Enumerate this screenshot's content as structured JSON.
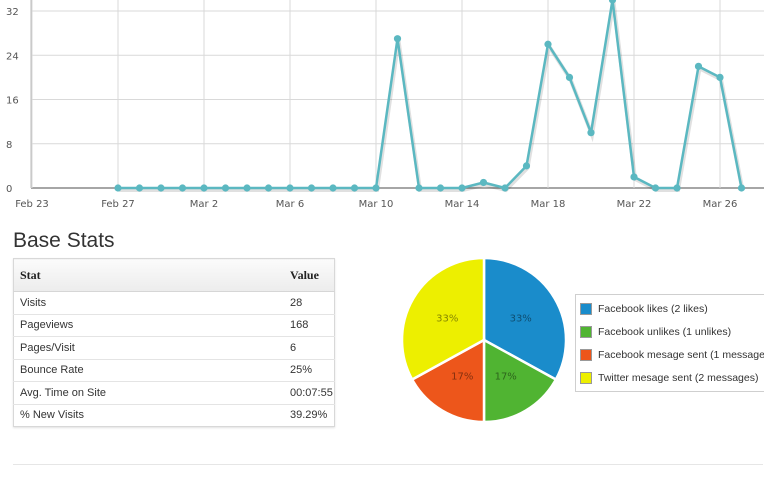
{
  "chart_data": [
    {
      "type": "line",
      "y_ticks": [
        "32",
        "24",
        "16",
        "8",
        "0"
      ],
      "x_tick_labels": [
        "Feb 23",
        "Feb 27",
        "Mar 2",
        "Mar 6",
        "Mar 10",
        "Mar 14",
        "Mar 18",
        "Mar 22",
        "Mar 26"
      ],
      "x": [
        "Feb 23",
        "Feb 24",
        "Feb 25",
        "Feb 26",
        "Feb 27",
        "Feb 28",
        "Mar 1",
        "Mar 2",
        "Mar 3",
        "Mar 4",
        "Mar 5",
        "Mar 6",
        "Mar 7",
        "Mar 8",
        "Mar 9",
        "Mar 10",
        "Mar 11",
        "Mar 12",
        "Mar 13",
        "Mar 14",
        "Mar 15",
        "Mar 16",
        "Mar 17",
        "Mar 18",
        "Mar 19",
        "Mar 20",
        "Mar 21",
        "Mar 22",
        "Mar 23",
        "Mar 24",
        "Mar 25",
        "Mar 26",
        "Mar 27",
        "Mar 28"
      ],
      "values": [
        null,
        null,
        null,
        null,
        0,
        0,
        0,
        0,
        0,
        0,
        0,
        0,
        0,
        0,
        0,
        0,
        0,
        27,
        0,
        0,
        0,
        1,
        0,
        4,
        26,
        20,
        10,
        34,
        2,
        0,
        0,
        22,
        20,
        0
      ],
      "ylim": [
        0,
        34
      ],
      "grid": true,
      "color": "#5bb8c1"
    },
    {
      "type": "pie",
      "slices": [
        {
          "label": "Facebook likes (2 likes)",
          "value": 33,
          "text": "33%",
          "color": "#1a8ccb"
        },
        {
          "label": "Facebook unlikes (1 unlikes)",
          "value": 17,
          "text": "17%",
          "color": "#50b432"
        },
        {
          "label": "Facebook mesage sent (1 message",
          "value": 17,
          "text": "17%",
          "color": "#ed561b"
        },
        {
          "label": "Twitter mesage sent (2 messages)",
          "value": 33,
          "text": "33%",
          "color": "#edef00"
        }
      ]
    }
  ],
  "stats": {
    "title": "Base Stats",
    "header": {
      "stat": "Stat",
      "value": "Value"
    },
    "rows": [
      {
        "stat": "Visits",
        "value": "28"
      },
      {
        "stat": "Pageviews",
        "value": "168"
      },
      {
        "stat": "Pages/Visit",
        "value": "6"
      },
      {
        "stat": "Bounce Rate",
        "value": "25%"
      },
      {
        "stat": "Avg. Time on Site",
        "value": "00:07:55"
      },
      {
        "stat": "% New Visits",
        "value": "39.29%"
      }
    ]
  }
}
